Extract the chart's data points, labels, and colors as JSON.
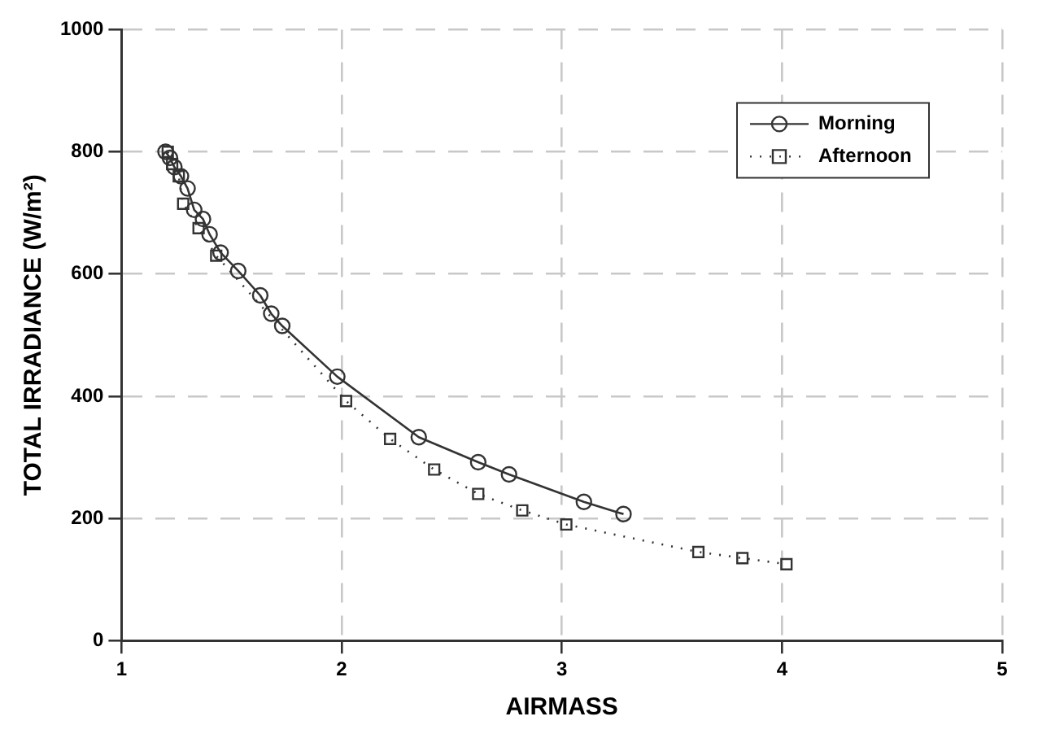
{
  "chart_data": {
    "type": "line",
    "xlabel": "AIRMASS",
    "ylabel": "TOTAL IRRADIANCE (W/m²)",
    "xlim": [
      1,
      5
    ],
    "xticks": [
      1,
      2,
      3,
      4,
      5
    ],
    "ylim": [
      0,
      1000
    ],
    "yticks": [
      0,
      200,
      400,
      600,
      800,
      1000
    ],
    "grid": true,
    "legend": "top right",
    "series": [
      {
        "name": "Morning",
        "color": "#333333",
        "marker": "circle",
        "line_style": "solid",
        "x": [
          1.2,
          1.22,
          1.24,
          1.27,
          1.3,
          1.33,
          1.37,
          1.4,
          1.45,
          1.53,
          1.63,
          1.68,
          1.73,
          1.98,
          2.35,
          2.62,
          2.76,
          3.1,
          3.28
        ],
        "values": [
          800,
          790,
          775,
          760,
          740,
          705,
          690,
          665,
          635,
          605,
          565,
          535,
          515,
          432,
          333,
          292,
          272,
          227,
          207
        ]
      },
      {
        "name": "Afternoon",
        "color": "#333333",
        "marker": "square",
        "line_style": "dotted",
        "x": [
          1.21,
          1.23,
          1.26,
          1.28,
          1.35,
          1.43,
          2.02,
          2.22,
          2.42,
          2.62,
          2.82,
          3.02,
          3.62,
          3.82,
          4.02
        ],
        "values": [
          800,
          780,
          760,
          715,
          675,
          630,
          392,
          330,
          280,
          240,
          213,
          190,
          145,
          135,
          125
        ]
      }
    ]
  }
}
